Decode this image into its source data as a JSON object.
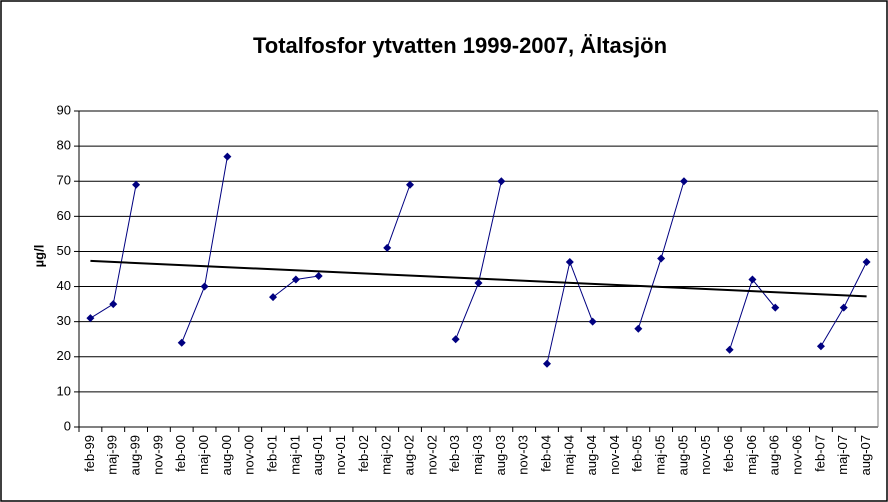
{
  "chart_data": {
    "type": "line",
    "title": "Totalfosfor ytvatten 1999-2007, Ältasjön",
    "y_label": "µg/l",
    "categories": [
      "feb-99",
      "maj-99",
      "aug-99",
      "nov-99",
      "feb-00",
      "maj-00",
      "aug-00",
      "nov-00",
      "feb-01",
      "maj-01",
      "aug-01",
      "nov-01",
      "feb-02",
      "maj-02",
      "aug-02",
      "nov-02",
      "feb-03",
      "maj-03",
      "aug-03",
      "nov-03",
      "feb-04",
      "maj-04",
      "aug-04",
      "nov-04",
      "feb-05",
      "maj-05",
      "aug-05",
      "nov-05",
      "feb-06",
      "maj-06",
      "aug-06",
      "nov-06",
      "feb-07",
      "maj-07",
      "aug-07"
    ],
    "series": [
      {
        "color": "#000080",
        "values": [
          31,
          35,
          69,
          null,
          24,
          40,
          77,
          null,
          37,
          42,
          43,
          null,
          null,
          51,
          69,
          null,
          25,
          41,
          70,
          null,
          18,
          47,
          30,
          null,
          28,
          48,
          70,
          null,
          22,
          42,
          34,
          null,
          23,
          34,
          47
        ]
      }
    ],
    "trendline": {
      "color": "#000000",
      "values": [
        47.3,
        37.2
      ]
    },
    "ylim": [
      0,
      90
    ],
    "yticks": [
      0,
      10,
      20,
      30,
      40,
      50,
      60,
      70,
      80,
      90
    ],
    "grid": true
  }
}
